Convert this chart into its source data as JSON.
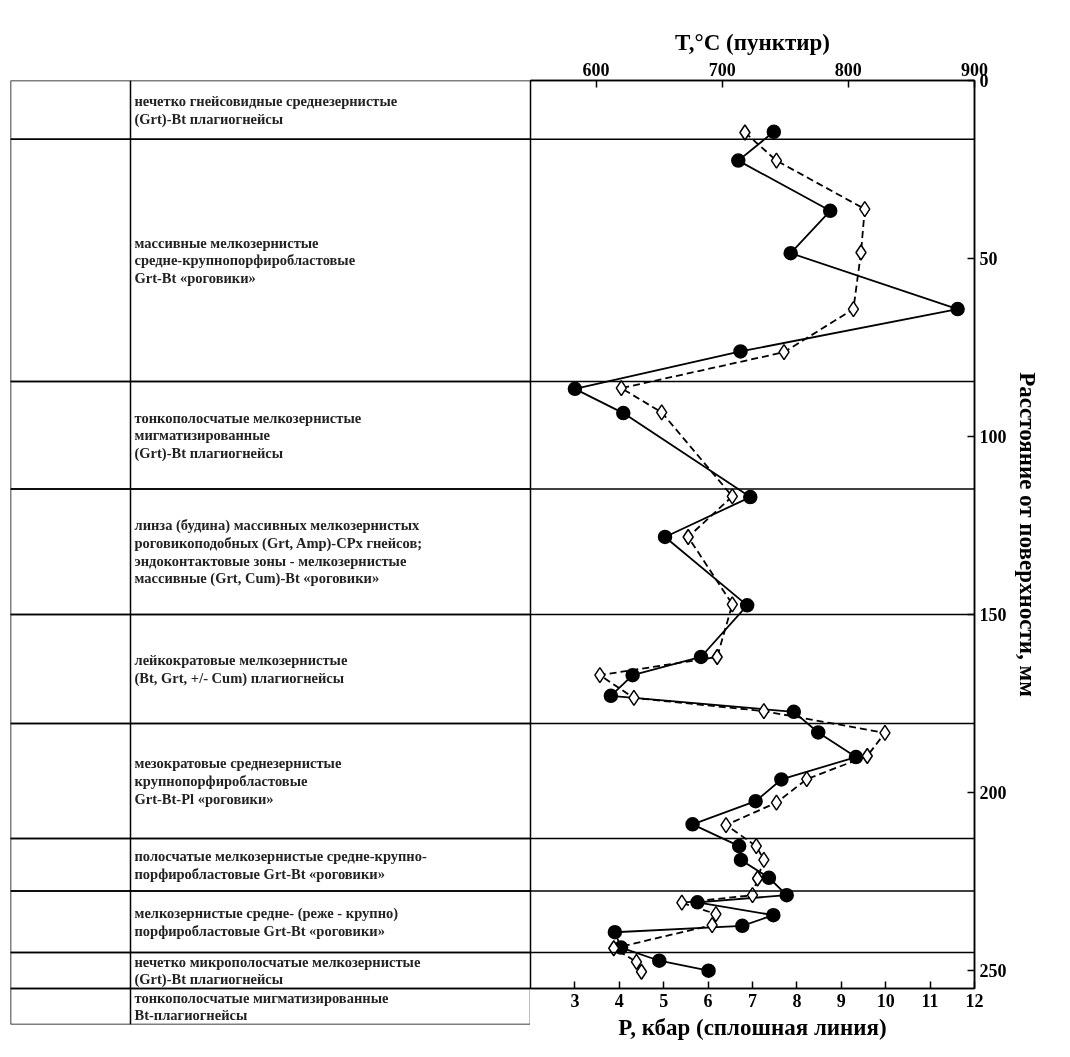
{
  "chart_data": {
    "type": "line",
    "xlabel": "P, кбар (сплошная линия)",
    "x2label": "T,°C (пунктир)",
    "ylabel": "Расстояние от поверхности, мм",
    "xlim": [
      2,
      12
    ],
    "xticks": [
      3,
      4,
      5,
      6,
      7,
      8,
      9,
      10,
      11,
      12
    ],
    "x2lim": [
      548,
      900
    ],
    "x2ticks": [
      600,
      700,
      800,
      900
    ],
    "ylim": [
      255,
      0
    ],
    "yticks": [
      0,
      50,
      100,
      150,
      200,
      250
    ],
    "series": [
      {
        "color": "#000000",
        "marker": "circle",
        "line_style": "solid",
        "x": [
          7.48,
          6.68,
          8.75,
          7.86,
          11.62,
          6.73,
          3.0,
          4.09,
          6.95,
          5.03,
          6.88,
          5.84,
          4.3,
          3.81,
          7.93,
          8.48,
          9.33,
          7.65,
          7.07,
          5.65,
          6.7,
          6.74,
          7.37,
          7.77,
          5.76,
          7.47,
          6.77,
          3.9,
          4.04,
          4.9,
          6.01
        ],
        "values": [
          14.4,
          22.5,
          36.6,
          48.5,
          64.2,
          76.1,
          86.6,
          93.4,
          117.0,
          128.2,
          147.4,
          161.9,
          167.0,
          172.8,
          177.3,
          183.1,
          190.0,
          196.3,
          202.4,
          208.9,
          215.0,
          218.9,
          223.9,
          228.8,
          230.8,
          234.4,
          237.4,
          239.2,
          243.5,
          247.2,
          250.0
        ]
      },
      {
        "axis": "x2",
        "color": "#000000",
        "marker": "diamond",
        "line_style": "dashed",
        "x": [
          718,
          743,
          813,
          810,
          804,
          749,
          620,
          652,
          708,
          673,
          708,
          696,
          603,
          630,
          733,
          829,
          815,
          767,
          743,
          703,
          727,
          733,
          728,
          724,
          668,
          695,
          692,
          614,
          632,
          636
        ],
        "values": [
          14.6,
          22.5,
          36.1,
          48.3,
          64.2,
          76.3,
          86.4,
          93.2,
          116.8,
          128.2,
          147.1,
          161.9,
          167.0,
          173.4,
          177.1,
          183.2,
          189.7,
          196.2,
          202.8,
          209.1,
          215.0,
          218.9,
          224.1,
          228.8,
          230.9,
          234.1,
          237.2,
          243.7,
          247.5,
          250.3
        ]
      }
    ],
    "ref_lines": [
      {
        "axis": "y",
        "value": 16.5
      },
      {
        "axis": "y",
        "value": 84.5
      },
      {
        "axis": "y",
        "value": 114.7
      },
      {
        "axis": "y",
        "value": 150.0
      },
      {
        "axis": "y",
        "value": 180.6
      },
      {
        "axis": "y",
        "value": 212.9
      },
      {
        "axis": "y",
        "value": 227.6
      },
      {
        "axis": "y",
        "value": 244.9
      }
    ],
    "annotations": [
      "нечетко гнейсовидные среднезернистые\n(Grt)-Bt плагиогнейсы",
      "массивные мелкозернистые\nсредне-крупнопорфиробластовые\nGrt-Bt «роговики»",
      "тонкополосчатые мелкозернистые\nмигматизированные\n(Grt)-Bt плагиогнейсы",
      "линза (будина) массивных мелкозернистых\nроговикоподобных (Grt, Amp)-CPx гнейсов;\nэндоконтактовые зоны - мелкозернистые\nмассивные (Grt, Cum)-Bt «роговики»",
      "лейкократовые мелкозернистые\n (Bt, Grt, +/- Cum) плагиогнейсы",
      "мезократовые среднезернистые\nкрупнопорфиробластовые\nGrt-Bt-Pl «роговики»",
      "полосчатые мелкозернистые средне-крупно-\nпорфиробластовые Grt-Bt «роговики»",
      "мелкозернистые средне- (реже - крупно)\nпорфиробластовые Grt-Bt «роговики»",
      "нечетко микрополосчатые мелкозернистые\n(Grt)-Bt плагиогнейсы",
      "тонкополосчатые мигматизированные\nBt-плагиогнейсы"
    ]
  }
}
